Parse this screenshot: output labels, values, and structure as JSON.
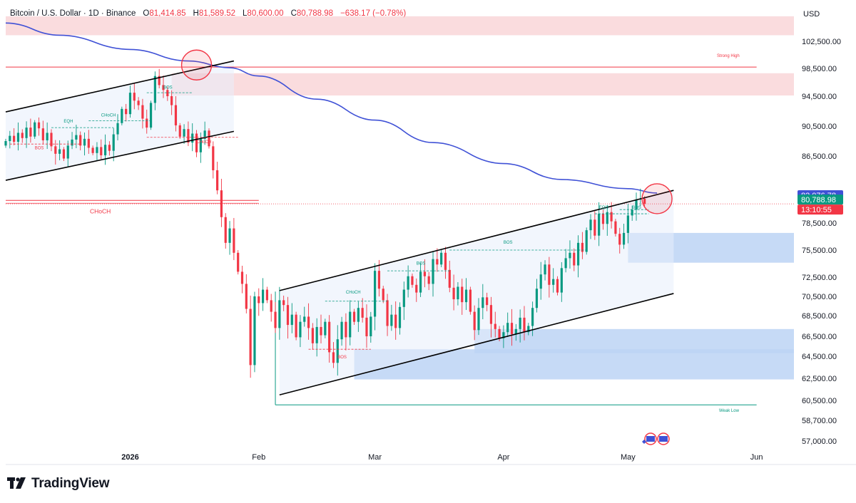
{
  "header": {
    "symbol": "Bitcoin / U.S. Dollar · 1D · Binance",
    "o_label": "O",
    "o_value": "81,414.85",
    "h_label": "H",
    "h_value": "81,589.52",
    "l_label": "L",
    "l_value": "80,600.00",
    "c_label": "C",
    "c_value": "80,788.98",
    "change": "−638.17 (−0.78%)"
  },
  "currency": "USD",
  "brand": "TradingView",
  "price_tags": {
    "ma_value": "82,076.78",
    "last_price": "80,788.98",
    "countdown": "13:10:55"
  },
  "colors": {
    "up": "#089981",
    "down": "#f23645",
    "ma": "#3f51d6",
    "supply": "#f7c5c8",
    "demand": "#bcd3f5",
    "channel": "#000000"
  },
  "annotations": {
    "strong_high": "Strong High",
    "weak_low": "Weak Low",
    "choch_main": "CHoCH",
    "bos": "BOS",
    "choch": "CHoCH",
    "eqh": "EQH"
  },
  "chart_data": {
    "type": "candlestick",
    "title": "Bitcoin / U.S. Dollar · 1D · Binance",
    "ylabel": "USD",
    "ylim": [
      55900,
      106000
    ],
    "y_ticks": [
      {
        "value": 102500,
        "label": "102,500.00"
      },
      {
        "value": 98500,
        "label": "98,500.00"
      },
      {
        "value": 94500,
        "label": "94,500.00"
      },
      {
        "value": 90500,
        "label": "90,500.00"
      },
      {
        "value": 86500,
        "label": "86,500.00"
      },
      {
        "value": 78500,
        "label": "78,500.00"
      },
      {
        "value": 75500,
        "label": "75,500.00"
      },
      {
        "value": 72500,
        "label": "72,500.00"
      },
      {
        "value": 70500,
        "label": "70,500.00"
      },
      {
        "value": 68500,
        "label": "68,500.00"
      },
      {
        "value": 66500,
        "label": "66,500.00"
      },
      {
        "value": 64500,
        "label": "64,500.00"
      },
      {
        "value": 62500,
        "label": "62,500.00"
      },
      {
        "value": 60500,
        "label": "60,500.00"
      },
      {
        "value": 58700,
        "label": "58,700.00"
      },
      {
        "value": 57000,
        "label": "57,000.00"
      }
    ],
    "x_range": [
      "2025-12-02",
      "2026-06-10"
    ],
    "x_ticks": [
      {
        "date": "2026-01-01",
        "label": "2026",
        "bold": true
      },
      {
        "date": "2026-02-01",
        "label": "Feb"
      },
      {
        "date": "2026-03-01",
        "label": "Mar"
      },
      {
        "date": "2026-04-01",
        "label": "Apr"
      },
      {
        "date": "2026-05-01",
        "label": "May"
      },
      {
        "date": "2026-06-01",
        "label": "Jun"
      }
    ],
    "candles_start": "2025-12-02",
    "closes": [
      88500,
      89200,
      88400,
      89600,
      88900,
      90300,
      89100,
      91000,
      90200,
      88600,
      89600,
      87800,
      86800,
      87400,
      86200,
      87900,
      88700,
      89300,
      87900,
      88800,
      87600,
      86900,
      87700,
      86600,
      88000,
      87200,
      89400,
      90900,
      92800,
      92100,
      95000,
      93900,
      93300,
      91500,
      90300,
      93600,
      97400,
      96100,
      95400,
      94500,
      93300,
      90600,
      89100,
      90100,
      88300,
      89500,
      87000,
      88800,
      89900,
      87800,
      84800,
      82400,
      79200,
      76300,
      77900,
      75200,
      73100,
      71800,
      69200,
      63700,
      70500,
      69800,
      71200,
      70100,
      68900,
      67300,
      70100,
      69600,
      67600,
      68600,
      66400,
      67900,
      68400,
      67300,
      65800,
      67400,
      66600,
      67900,
      64900,
      63900,
      66200,
      67900,
      66400,
      68900,
      67900,
      69300,
      68300,
      66500,
      68400,
      73200,
      71300,
      70100,
      67500,
      68600,
      67300,
      69400,
      71200,
      72600,
      71700,
      70900,
      73100,
      72600,
      71800,
      74500,
      73900,
      75200,
      73300,
      71400,
      70200,
      71500,
      69900,
      71200,
      68900,
      67100,
      69300,
      70400,
      69600,
      67700,
      67200,
      66300,
      66900,
      67800,
      66700,
      67200,
      68300,
      66900,
      67500,
      69300,
      71300,
      72800,
      73900,
      71700,
      72300,
      70900,
      73500,
      74600,
      75200,
      73800,
      76300,
      75300,
      77700,
      78900,
      77100,
      79600,
      78400,
      79800,
      78700,
      77300,
      76100,
      77400,
      79400,
      80100,
      81300,
      81400,
      80800
    ],
    "ma_series": [
      {
        "date": "2025-12-02",
        "value": 105200
      },
      {
        "date": "2025-12-15",
        "value": 103400
      },
      {
        "date": "2026-01-01",
        "value": 101300
      },
      {
        "date": "2026-01-15",
        "value": 99600
      },
      {
        "date": "2026-01-25",
        "value": 98600
      },
      {
        "date": "2026-02-01",
        "value": 97400
      },
      {
        "date": "2026-02-15",
        "value": 94100
      },
      {
        "date": "2026-03-01",
        "value": 91300
      },
      {
        "date": "2026-03-15",
        "value": 88300
      },
      {
        "date": "2026-04-01",
        "value": 85600
      },
      {
        "date": "2026-04-15",
        "value": 83700
      },
      {
        "date": "2026-05-01",
        "value": 82600
      },
      {
        "date": "2026-05-08",
        "value": 82076.78
      }
    ],
    "channels": [
      {
        "from": {
          "date": "2025-12-02",
          "value": 92400
        },
        "to": {
          "date": "2026-01-26",
          "value": 99600
        }
      },
      {
        "from": {
          "date": "2025-12-02",
          "value": 83600
        },
        "to": {
          "date": "2026-01-26",
          "value": 89800
        }
      },
      {
        "from": {
          "date": "2026-02-06",
          "value": 71100
        },
        "to": {
          "date": "2026-05-12",
          "value": 82400
        }
      },
      {
        "from": {
          "date": "2026-02-06",
          "value": 61000
        },
        "to": {
          "date": "2026-05-12",
          "value": 70800
        }
      }
    ],
    "zones": [
      {
        "kind": "supply",
        "from": "2025-12-02",
        "to": "2026-06-10",
        "low": 103400,
        "high": 106200
      },
      {
        "kind": "supply",
        "from": "2026-01-11",
        "to": "2026-06-10",
        "low": 94600,
        "high": 97800
      },
      {
        "kind": "demand",
        "from": "2026-05-01",
        "to": "2026-06-10",
        "low": 74100,
        "high": 77400
      },
      {
        "kind": "demand",
        "from": "2026-03-25",
        "to": "2026-06-10",
        "low": 64800,
        "high": 67200
      },
      {
        "kind": "demand",
        "from": "2026-02-24",
        "to": "2026-06-10",
        "low": 62400,
        "high": 65200
      }
    ],
    "levels": [
      {
        "label": "Strong High",
        "value": 98700,
        "from": "2025-12-02",
        "to": "2026-06-01",
        "color": "#f23645"
      },
      {
        "label": "CHoCH",
        "value": 81200,
        "from": "2025-12-02",
        "to": "2026-02-01",
        "color": "#f23645"
      },
      {
        "label": "Weak Low",
        "value": 60100,
        "from": "2026-02-05",
        "to": "2026-06-01",
        "color": "#089981"
      }
    ],
    "last_price": 80788.98,
    "ma_last": 82076.78
  }
}
